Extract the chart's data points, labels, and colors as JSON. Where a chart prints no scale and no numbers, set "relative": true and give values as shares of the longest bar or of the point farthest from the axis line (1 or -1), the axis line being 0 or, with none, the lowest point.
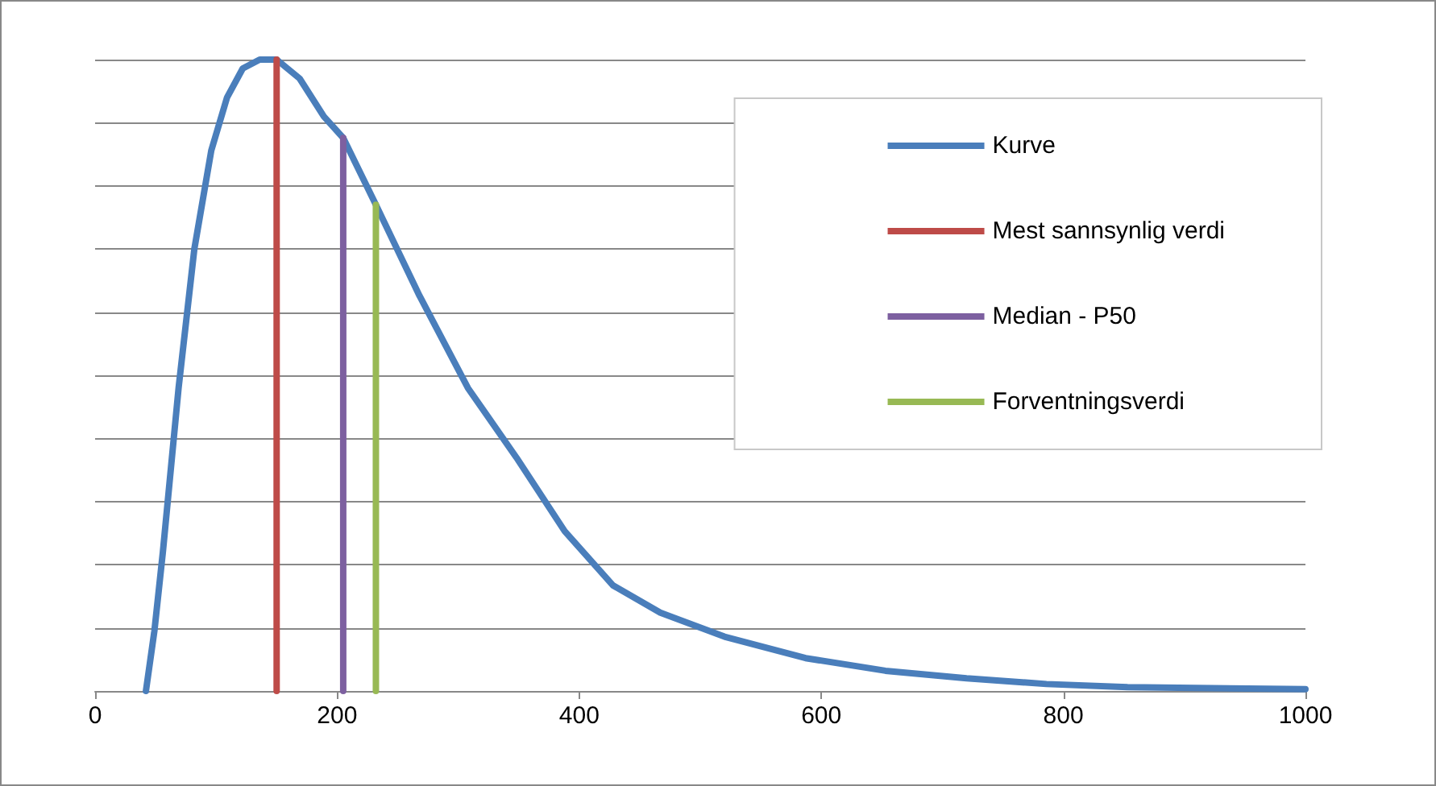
{
  "chart_data": {
    "type": "line",
    "relative": true,
    "grid": "y",
    "legend": "top right",
    "marker": "none",
    "line_style": "solid",
    "xlim": [
      0,
      1000
    ],
    "xticks": [
      0,
      200,
      400,
      600,
      800,
      1000
    ],
    "series": [
      {
        "name": "Kurve",
        "color": "#4a7ebb",
        "x": [
          42,
          49,
          56,
          69,
          82,
          96,
          109,
          122,
          136,
          150,
          169,
          189,
          205,
          232,
          268,
          308,
          348,
          388,
          428,
          467,
          520,
          587,
          653,
          720,
          786,
          853,
          1000
        ],
        "values": [
          0,
          0.095,
          0.22,
          0.48,
          0.7,
          0.856,
          0.94,
          0.986,
          1,
          1,
          0.97,
          0.91,
          0.876,
          0.77,
          0.626,
          0.48,
          0.37,
          0.253,
          0.167,
          0.124,
          0.086,
          0.052,
          0.032,
          0.02,
          0.011,
          0.006,
          0.003
        ]
      },
      {
        "name": "Mest sannsynlig verdi",
        "color": "#be4b48",
        "x": [
          150,
          150
        ],
        "values": [
          0,
          1
        ]
      },
      {
        "name": "Median - P50",
        "color": "#7d60a0",
        "x": [
          205,
          205
        ],
        "values": [
          0,
          0.876
        ]
      },
      {
        "name": "Forventningsverdi",
        "color": "#98b954",
        "x": [
          232,
          232
        ],
        "values": [
          0,
          0.77
        ]
      }
    ]
  }
}
